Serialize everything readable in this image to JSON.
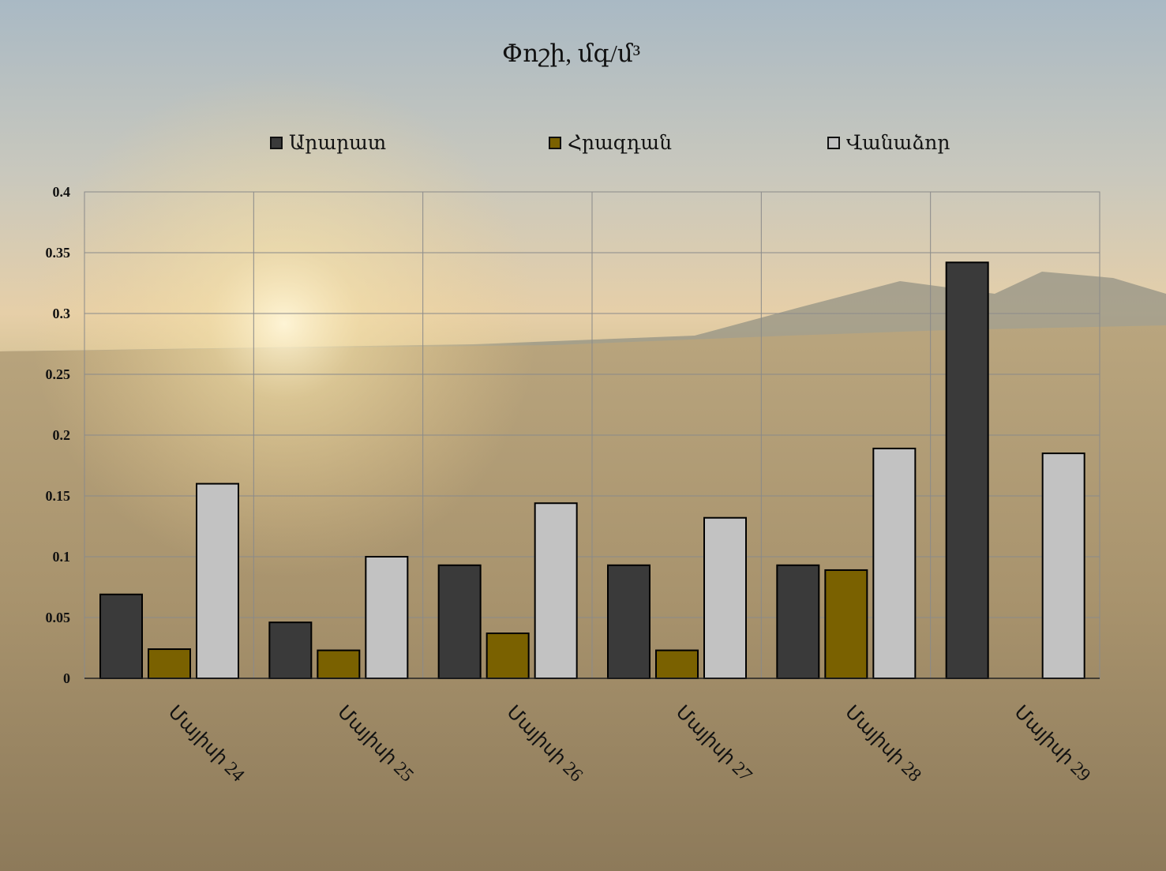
{
  "chart_data": {
    "type": "bar",
    "title": "Փոշի, մգ/մ³",
    "categories": [
      "Մայիսի 24",
      "Մայիսի 25",
      "Մայիսի 26",
      "Մայիսի 27",
      "Մայիսի 28",
      "Մայիսի 29"
    ],
    "series": [
      {
        "name": "Արարատ",
        "color": "#3a3a3a",
        "values": [
          0.069,
          0.046,
          0.093,
          0.093,
          0.093,
          0.342
        ]
      },
      {
        "name": "Հրազդան",
        "color": "#7a6100",
        "values": [
          0.024,
          0.023,
          0.037,
          0.023,
          0.089,
          0
        ]
      },
      {
        "name": "Վանաձոր",
        "color": "#c2c2c2",
        "values": [
          0.16,
          0.1,
          0.144,
          0.132,
          0.189,
          0.185
        ]
      }
    ],
    "yticks": [
      "0",
      "0.05",
      "0.1",
      "0.15",
      "0.2",
      "0.25",
      "0.3",
      "0.35",
      "0.4"
    ],
    "ylim": [
      0,
      0.4
    ],
    "grid": true,
    "legend": "top"
  }
}
